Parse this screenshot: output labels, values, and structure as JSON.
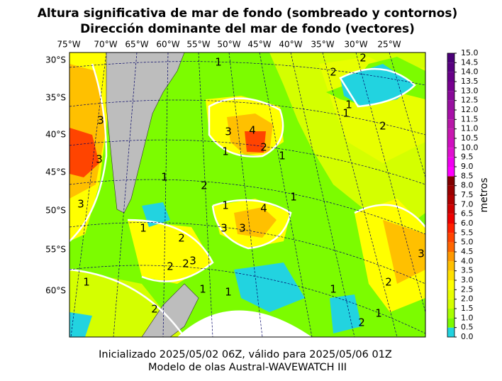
{
  "title": [
    "Altura significativa de mar de fondo (sombreado y contornos)",
    "Dirección dominante del mar de fondo (vectores)"
  ],
  "lon_labels": [
    "75°W",
    "70°W",
    "65°W",
    "60°W",
    "55°W",
    "50°W",
    "45°W",
    "40°W",
    "35°W",
    "30°W",
    "25°W"
  ],
  "lat_labels": [
    "30°S",
    "35°S",
    "40°S",
    "45°S",
    "50°S",
    "55°S",
    "60°S"
  ],
  "contour_labels": [
    "2",
    "2",
    "1",
    "1",
    "1",
    "3",
    "3",
    "4",
    "2",
    "2",
    "1",
    "1",
    "3",
    "1",
    "2",
    "1",
    "3",
    "1",
    "4",
    "3",
    "3",
    "2",
    "1",
    "2",
    "3",
    "2",
    "1",
    "1",
    "1",
    "2",
    "1",
    "2",
    "1",
    "2",
    "3"
  ],
  "colorbar": {
    "label": "metros",
    "ticks": [
      {
        "value": 0,
        "label": "0.0"
      },
      {
        "value": 0.5,
        "label": "0.5"
      },
      {
        "value": 1,
        "label": "1.0"
      },
      {
        "value": 1.5,
        "label": "1.5"
      },
      {
        "value": 2,
        "label": "2.0"
      },
      {
        "value": 2.5,
        "label": "2.5"
      },
      {
        "value": 3,
        "label": "3.0"
      },
      {
        "value": 3.5,
        "label": "3.5"
      },
      {
        "value": 4,
        "label": "4.0"
      },
      {
        "value": 4.5,
        "label": "4.5"
      },
      {
        "value": 5,
        "label": "5.0"
      },
      {
        "value": 5.5,
        "label": "5.5"
      },
      {
        "value": 6,
        "label": "6.0"
      },
      {
        "value": 6.5,
        "label": "6.5"
      },
      {
        "value": 7,
        "label": "7.0"
      },
      {
        "value": 7.5,
        "label": "7.5"
      },
      {
        "value": 8,
        "label": "8.0"
      },
      {
        "value": 8.5,
        "label": "8.5"
      },
      {
        "value": 9,
        "label": "9.0"
      },
      {
        "value": 9.5,
        "label": "9.5"
      },
      {
        "value": 10,
        "label": "10.0"
      },
      {
        "value": 10.5,
        "label": "10.5"
      },
      {
        "value": 11,
        "label": "11.0"
      },
      {
        "value": 11.5,
        "label": "11.5"
      },
      {
        "value": 12,
        "label": "12.0"
      },
      {
        "value": 12.5,
        "label": "12.5"
      },
      {
        "value": 13,
        "label": "13.0"
      },
      {
        "value": 13.5,
        "label": "13.5"
      },
      {
        "value": 14,
        "label": "14.0"
      },
      {
        "value": 14.5,
        "label": "14.5"
      },
      {
        "value": 15,
        "label": "15.0"
      }
    ],
    "colors": [
      "#22d3e0",
      "#7cfc00",
      "#a8ff00",
      "#d4ff00",
      "#e8ff00",
      "#ffff00",
      "#ffe000",
      "#ffc000",
      "#ff9900",
      "#ff6600",
      "#ff4400",
      "#ff2000",
      "#ee0000",
      "#d00000",
      "#b00000",
      "#990000",
      "#800000",
      "#ff00ff",
      "#f000f0",
      "#e010d0",
      "#d010c0",
      "#c818b0",
      "#b818a8",
      "#a810a8",
      "#9810a0",
      "#880898",
      "#780090",
      "#680088",
      "#580080",
      "#4b0078"
    ]
  },
  "footer": [
    "Inicializado 2025/05/02 06Z, válido para 2025/05/06 01Z",
    "Modelo de olas Austral-WAVEWATCH III"
  ]
}
